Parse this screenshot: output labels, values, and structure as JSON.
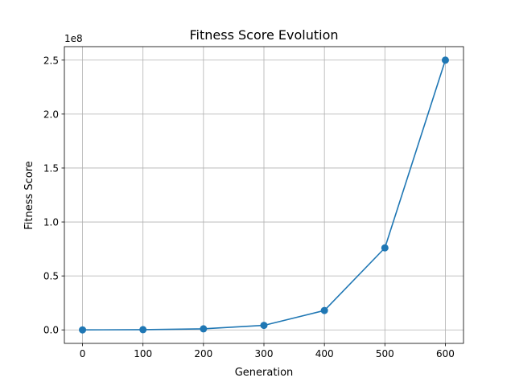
{
  "chart_data": {
    "type": "line",
    "title": "Fitness Score Evolution",
    "xlabel": "Generation",
    "ylabel": "Fitness Score",
    "y_offset_label": "1e8",
    "x": [
      0,
      100,
      200,
      300,
      400,
      500,
      600
    ],
    "series": [
      {
        "values": [
          0,
          250000,
          1000000,
          4200000,
          18000000,
          76000000,
          250000000
        ]
      }
    ],
    "xticks": [
      0,
      100,
      200,
      300,
      400,
      500,
      600
    ],
    "xtick_labels": [
      "0",
      "100",
      "200",
      "300",
      "400",
      "500",
      "600"
    ],
    "yticks": [
      0,
      50000000,
      100000000,
      150000000,
      200000000,
      250000000
    ],
    "ytick_labels": [
      "0.0",
      "0.5",
      "1.0",
      "1.5",
      "2.0",
      "2.5"
    ],
    "xlim": [
      -30,
      630
    ],
    "ylim": [
      -12500000,
      262500000
    ],
    "grid": true,
    "line_color": "#1f77b4",
    "marker": "circle"
  }
}
